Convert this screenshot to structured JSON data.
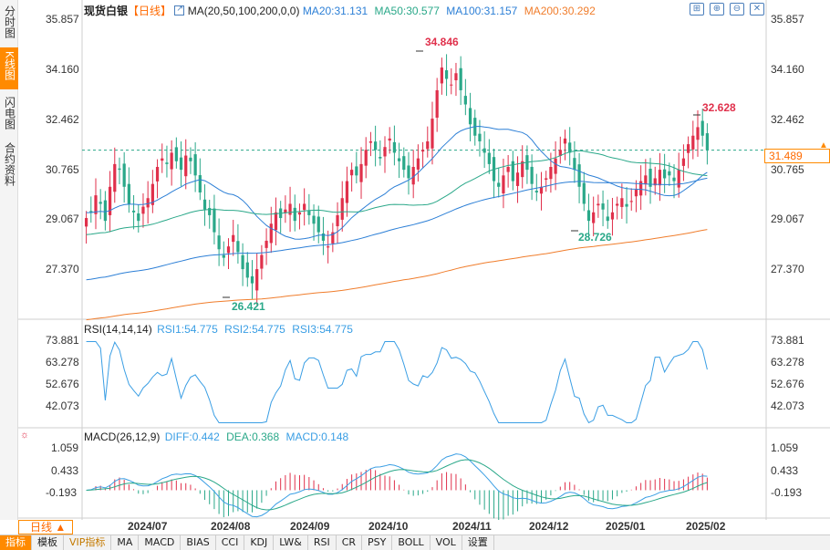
{
  "sidebar": {
    "tabs": [
      {
        "label": "分时图"
      },
      {
        "label": "K线图"
      },
      {
        "label": "闪电图"
      },
      {
        "label": "合约资料"
      }
    ]
  },
  "header": {
    "symbol": "现货白银",
    "period_tag": "【日线】",
    "ma_title": "MA(20,50,100,200,0,0)",
    "ma20": "MA20:31.131",
    "ma50": "MA50:30.577",
    "ma100": "MA100:31.157",
    "ma200": "MA200:30.292"
  },
  "colors": {
    "up": "#e0304b",
    "down": "#2aa889",
    "ma20": "#2c7fd6",
    "ma50": "#2aa889",
    "ma100": "#2c7fd6",
    "ma200": "#f07d2c",
    "accent": "#ff8a00",
    "rsi": "#3a9ee4"
  },
  "toolbar_icons": [
    "grid-icon",
    "zoom-in-icon",
    "zoom-out-icon",
    "close-icon"
  ],
  "price_axis": {
    "left": [
      "35.857",
      "34.160",
      "32.462",
      "30.765",
      "29.067",
      "27.370"
    ],
    "right": [
      "35.857",
      "34.160",
      "32.462",
      "30.765",
      "29.067",
      "27.370"
    ],
    "current": "31.489",
    "high_label": "34.846",
    "recent_high_label": "32.628",
    "low_label": "26.421",
    "recent_low_label": "28.726"
  },
  "rsi": {
    "title": "RSI(14,14,14)",
    "rsi1": "RSI1:54.775",
    "rsi2": "RSI2:54.775",
    "rsi3": "RSI3:54.775",
    "left_ticks": [
      "73.881",
      "63.278",
      "52.676",
      "42.073"
    ],
    "right_ticks": [
      "73.881",
      "63.278",
      "52.676",
      "42.073"
    ]
  },
  "macd": {
    "title": "MACD(26,12,9)",
    "diff": "DIFF:0.442",
    "dea": "DEA:0.368",
    "macd": "MACD:0.148",
    "left_ticks": [
      "1.059",
      "0.433",
      "-0.193"
    ],
    "right_ticks": [
      "1.059",
      "0.433",
      "-0.193"
    ]
  },
  "x_axis": {
    "dates": [
      "2024/07",
      "2024/08",
      "2024/09",
      "2024/10",
      "2024/11",
      "2024/12",
      "2025/01",
      "2025/02"
    ]
  },
  "period_button": "日线 ▲",
  "bottom_tabs": [
    "指标",
    "模板",
    "VIP指标",
    "MA",
    "MACD",
    "BIAS",
    "CCI",
    "KDJ",
    "LW&",
    "RSI",
    "CR",
    "PSY",
    "BOLL",
    "VOL",
    "设置"
  ],
  "chart_data": {
    "type": "candlestick",
    "title": "现货白银 【日线】",
    "ylim": [
      25.6,
      36.2
    ],
    "price_path": [
      29.1,
      29.3,
      29.9,
      29.6,
      29.0,
      30.2,
      31.0,
      30.8,
      30.2,
      29.6,
      29.3,
      29.0,
      29.5,
      29.8,
      30.3,
      30.9,
      31.2,
      31.0,
      31.4,
      31.1,
      30.8,
      31.3,
      31.1,
      30.6,
      30.0,
      29.4,
      29.2,
      28.6,
      28.0,
      27.7,
      28.1,
      28.5,
      27.9,
      27.3,
      27.0,
      26.8,
      27.3,
      27.8,
      28.3,
      28.9,
      29.3,
      29.1,
      29.4,
      29.6,
      29.0,
      29.3,
      29.6,
      29.2,
      28.9,
      28.6,
      28.3,
      28.1,
      28.6,
      29.2,
      29.8,
      30.4,
      30.8,
      30.6,
      31.0,
      31.5,
      31.8,
      31.5,
      31.2,
      31.6,
      31.9,
      31.4,
      31.1,
      30.8,
      30.5,
      30.9,
      31.2,
      31.5,
      31.8,
      32.6,
      33.6,
      34.4,
      34.0,
      33.8,
      34.2,
      33.6,
      33.1,
      32.4,
      32.0,
      31.8,
      31.4,
      31.0,
      30.4,
      30.2,
      30.6,
      30.9,
      30.4,
      30.7,
      31.1,
      30.8,
      30.3,
      30.0,
      30.2,
      30.5,
      30.9,
      31.2,
      31.5,
      31.9,
      31.4,
      30.8,
      30.2,
      29.6,
      29.0,
      29.3,
      29.6,
      29.4,
      29.0,
      29.3,
      29.6,
      29.8,
      29.5,
      29.7,
      30.1,
      30.4,
      30.6,
      30.2,
      30.5,
      30.8,
      30.5,
      30.6,
      30.4,
      30.8,
      31.2,
      31.7,
      32.0,
      32.3,
      32.0,
      31.5
    ],
    "rsi_ylim": [
      34,
      78
    ],
    "macd_ylim": [
      -0.75,
      1.3
    ]
  }
}
